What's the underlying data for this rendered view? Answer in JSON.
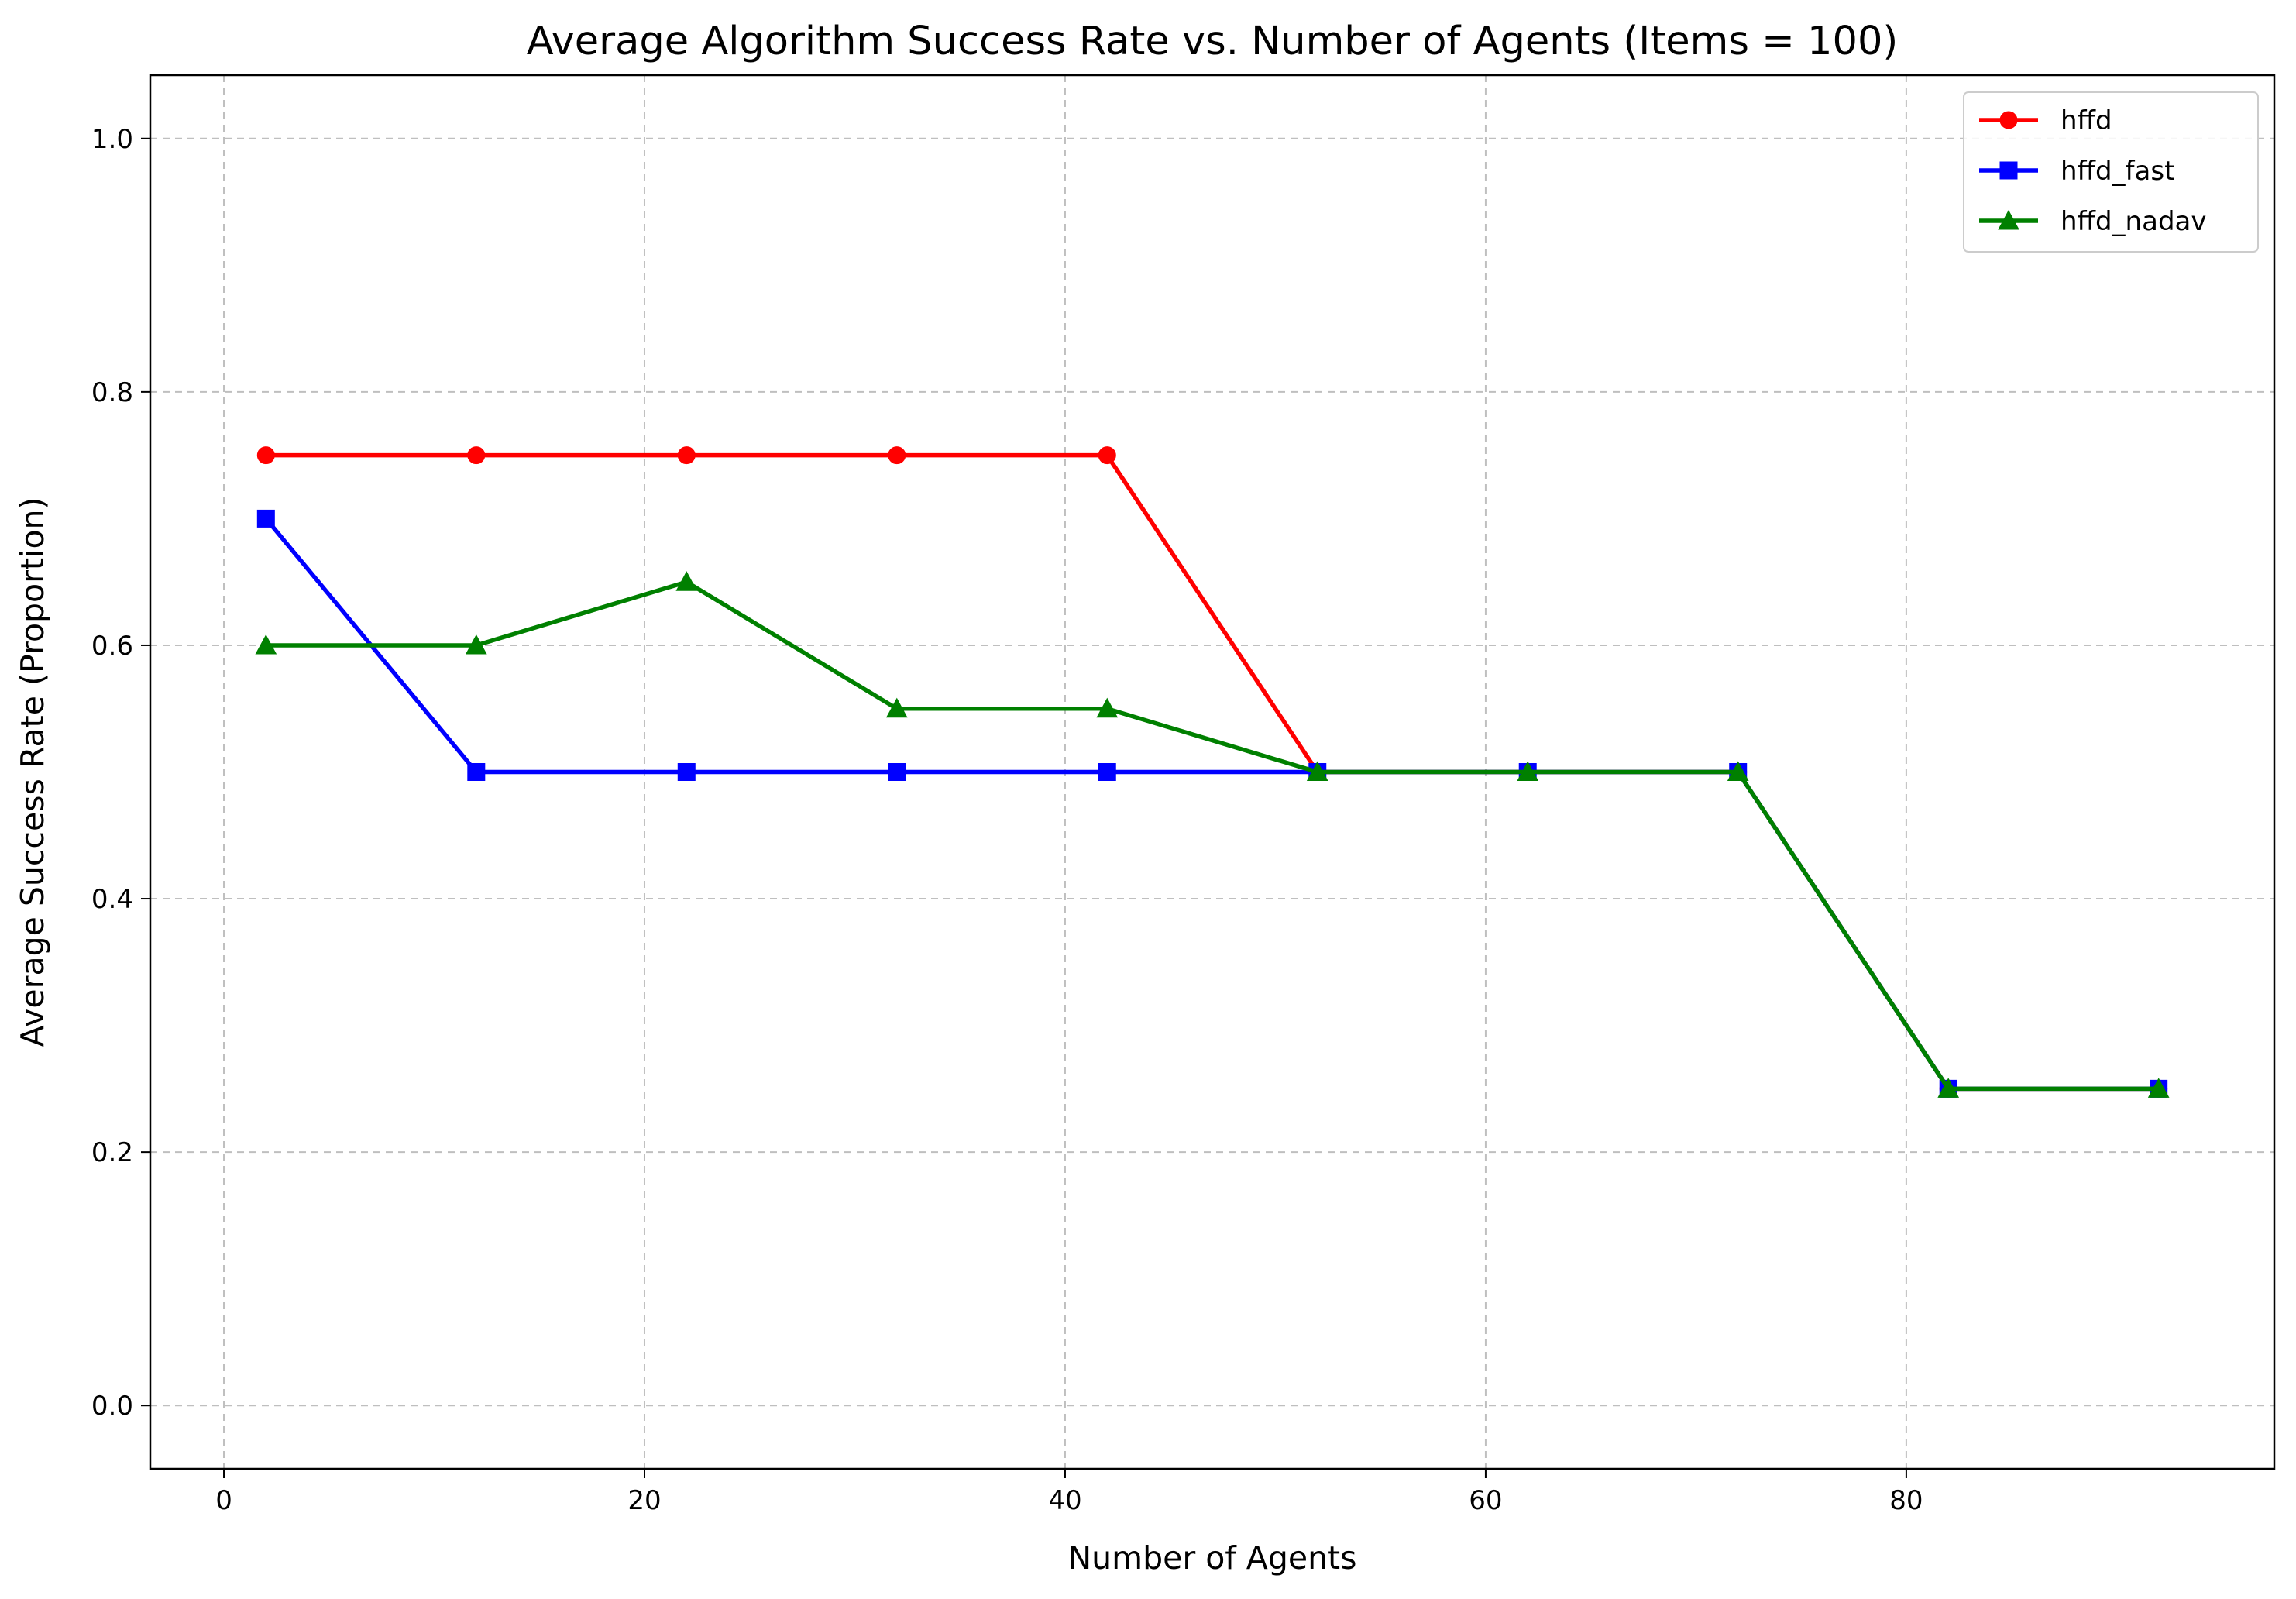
{
  "chart_data": {
    "type": "line",
    "title": "Average Algorithm Success Rate vs. Number of Agents (Items = 100)",
    "xlabel": "Number of Agents",
    "ylabel": "Average Success Rate (Proportion)",
    "x": [
      2,
      12,
      22,
      32,
      42,
      52,
      62,
      72,
      82,
      92
    ],
    "xlim": [
      -3.5,
      97.5
    ],
    "ylim": [
      -0.05,
      1.05
    ],
    "xticks": [
      0,
      20,
      40,
      60,
      80
    ],
    "xtick_labels": [
      "0",
      "20",
      "40",
      "60",
      "80"
    ],
    "yticks": [
      0.0,
      0.2,
      0.4,
      0.6,
      0.8,
      1.0
    ],
    "ytick_labels": [
      "0.0",
      "0.2",
      "0.4",
      "0.6",
      "0.8",
      "1.0"
    ],
    "grid": true,
    "legend_position": "top-right",
    "series": [
      {
        "name": "hffd",
        "color": "#ff0000",
        "marker": "circle",
        "values": [
          0.75,
          0.75,
          0.75,
          0.75,
          0.75,
          0.5,
          0.5,
          0.5,
          0.25,
          0.25
        ]
      },
      {
        "name": "hffd_fast",
        "color": "#0000ff",
        "marker": "square",
        "values": [
          0.7,
          0.5,
          0.5,
          0.5,
          0.5,
          0.5,
          0.5,
          0.5,
          0.25,
          0.25
        ]
      },
      {
        "name": "hffd_nadav",
        "color": "#008000",
        "marker": "triangle",
        "values": [
          0.6,
          0.6,
          0.65,
          0.55,
          0.55,
          0.5,
          0.5,
          0.5,
          0.25,
          0.25
        ]
      }
    ]
  }
}
